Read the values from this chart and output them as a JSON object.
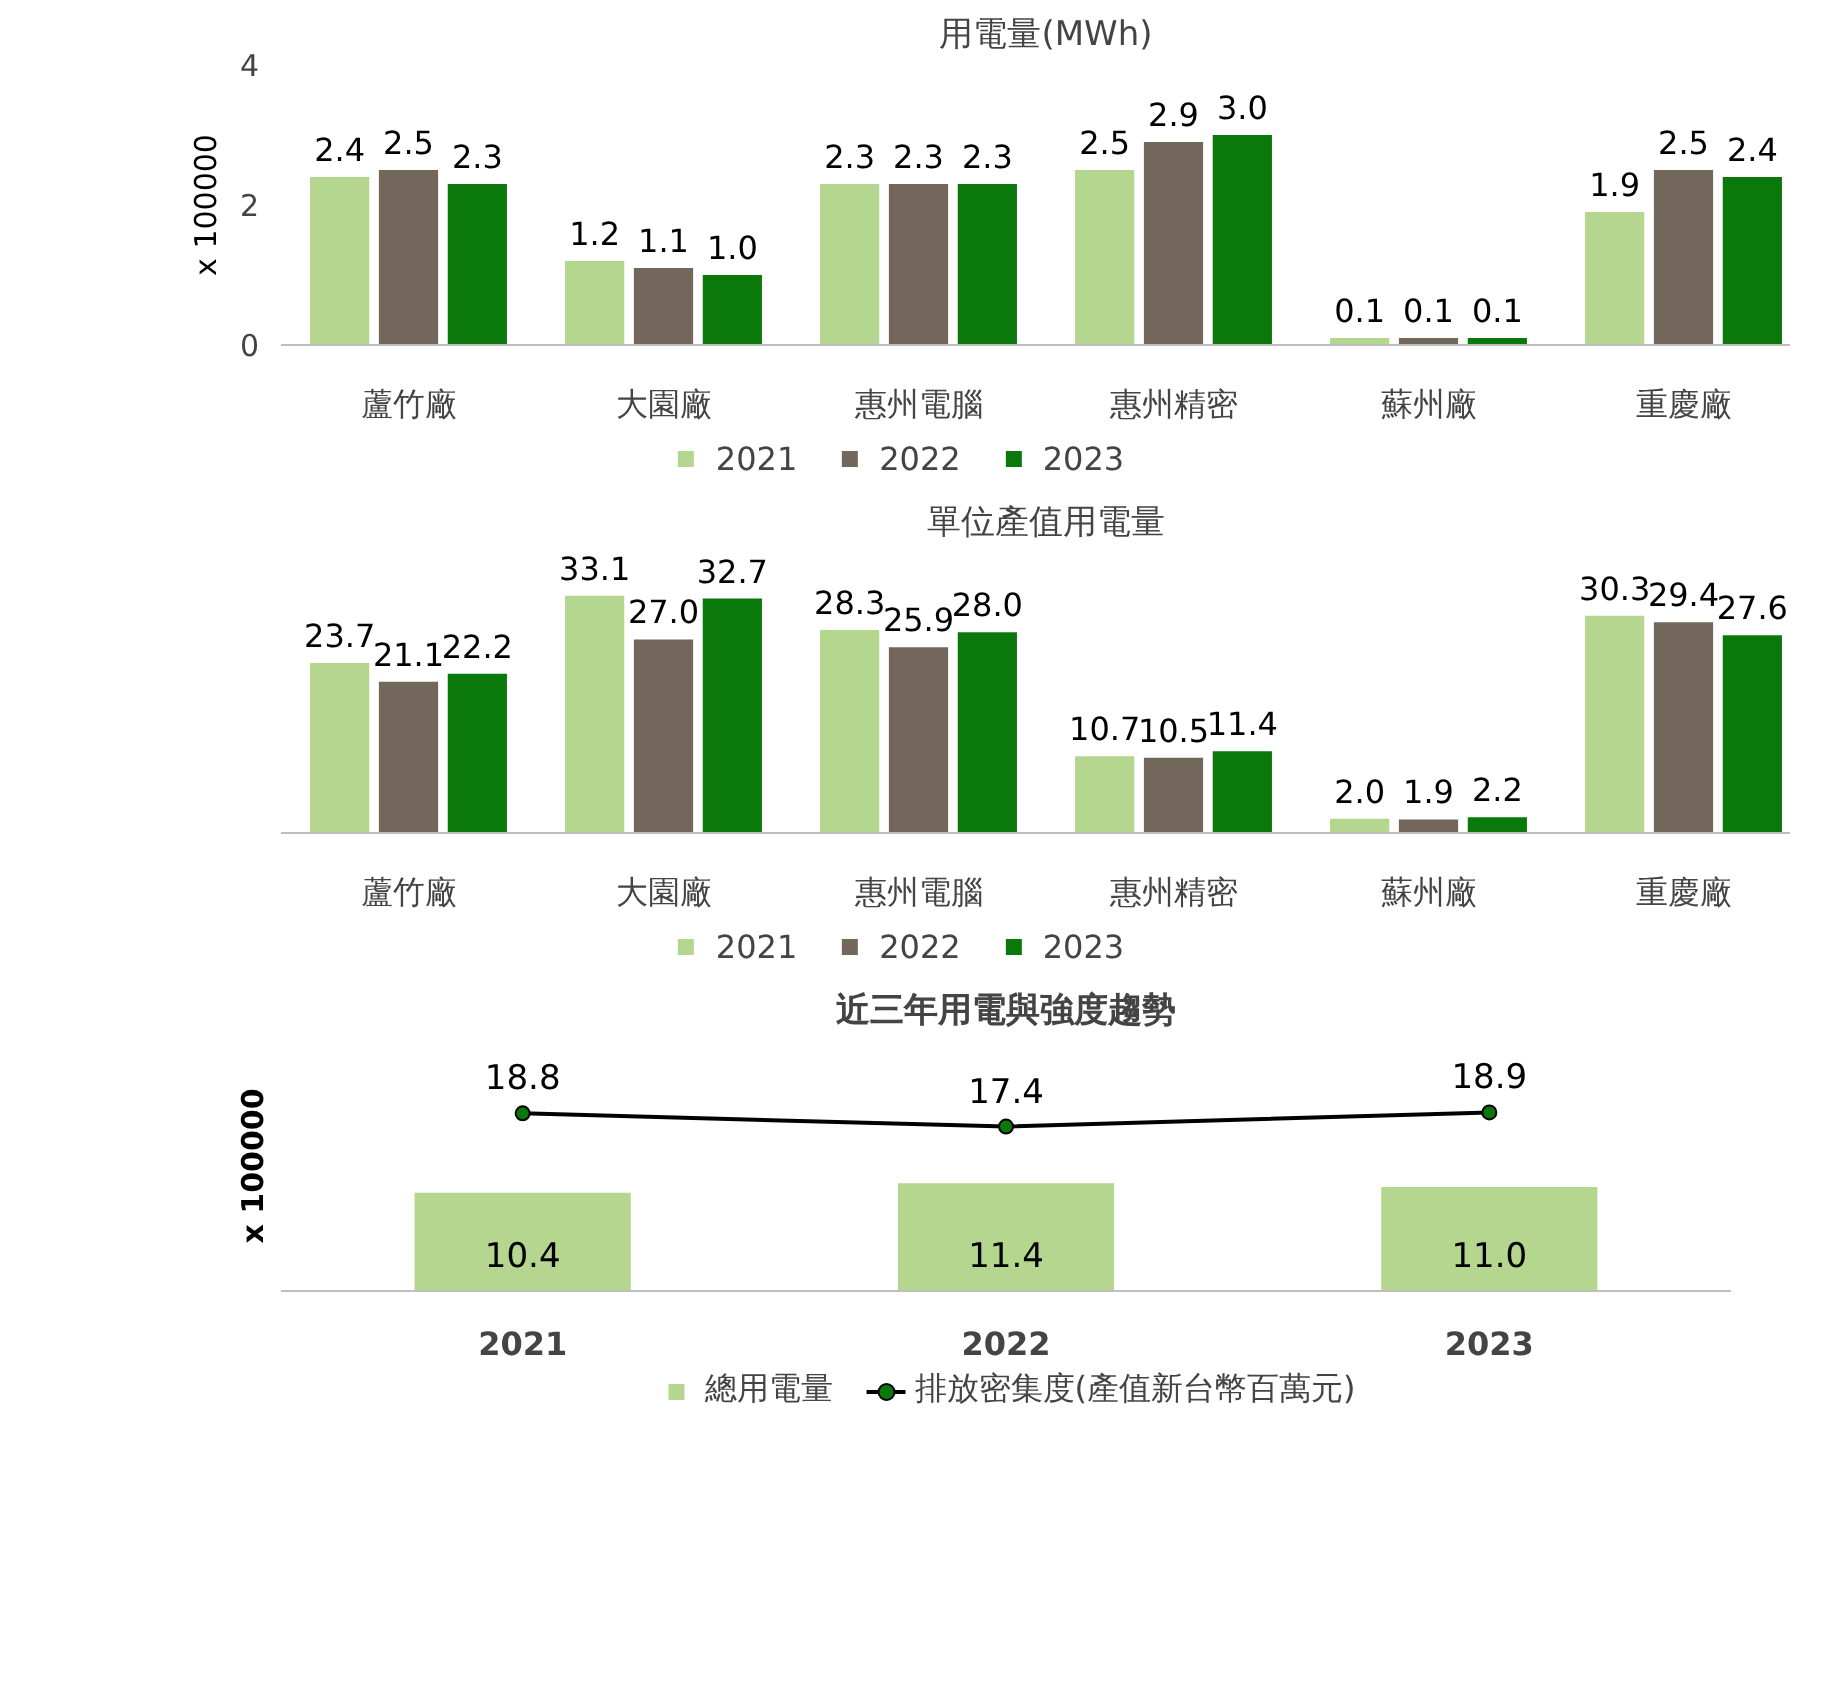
{
  "chart_data": [
    {
      "type": "bar",
      "title": "用電量(MWh)",
      "ylabel": "x 100000",
      "categories": [
        "蘆竹廠",
        "大園廠",
        "惠州電腦",
        "惠州精密",
        "蘇州廠",
        "重慶廠"
      ],
      "series": [
        {
          "name": "2021",
          "color": "#b5d68f",
          "values": [
            2.4,
            1.2,
            2.3,
            2.5,
            0.1,
            1.9
          ],
          "value_labels": [
            "2.4",
            "1.2",
            "2.3",
            "2.5",
            "0.1",
            "1.9"
          ]
        },
        {
          "name": "2022",
          "color": "#72675a",
          "values": [
            2.5,
            1.1,
            2.3,
            2.9,
            0.1,
            2.5
          ],
          "value_labels": [
            "2.5",
            "1.1",
            "2.3",
            "2.9",
            "0.1",
            "2.5"
          ]
        },
        {
          "name": "2023",
          "color": "#0b780b",
          "values": [
            2.3,
            1.0,
            2.3,
            3.0,
            0.1,
            2.4
          ],
          "value_labels": [
            "2.3",
            "1.0",
            "2.3",
            "3.0",
            "0.1",
            "2.4"
          ]
        }
      ],
      "ylim": [
        0,
        4
      ],
      "yticks": [
        0,
        2,
        4
      ],
      "legend": "bottom"
    },
    {
      "type": "bar",
      "title": "單位產值用電量",
      "categories": [
        "蘆竹廠",
        "大園廠",
        "惠州電腦",
        "惠州精密",
        "蘇州廠",
        "重慶廠"
      ],
      "series": [
        {
          "name": "2021",
          "color": "#b5d68f",
          "values": [
            23.7,
            33.1,
            28.3,
            10.7,
            2.0,
            30.3
          ],
          "value_labels": [
            "23.7",
            "33.1",
            "28.3",
            "10.7",
            "2.0",
            "30.3"
          ]
        },
        {
          "name": "2022",
          "color": "#72675a",
          "values": [
            21.1,
            27.0,
            25.9,
            10.5,
            1.9,
            29.4
          ],
          "value_labels": [
            "21.1",
            "27.0",
            "25.9",
            "10.5",
            "1.9",
            "29.4"
          ]
        },
        {
          "name": "2023",
          "color": "#0b780b",
          "values": [
            22.2,
            32.7,
            28.0,
            11.4,
            2.2,
            27.6
          ],
          "value_labels": [
            "22.2",
            "32.7",
            "28.0",
            "11.4",
            "2.2",
            "27.6"
          ]
        }
      ],
      "tick_labels": "x",
      "legend": "bottom"
    },
    {
      "type": "bar",
      "title": "近三年用電與強度趨勢",
      "ylabel": "x 100000",
      "categories": [
        "2021",
        "2022",
        "2023"
      ],
      "series": [
        {
          "name": "總用電量",
          "type": "bar",
          "color": "#b5d68f",
          "values": [
            10.4,
            11.4,
            11.0
          ],
          "value_labels": [
            "10.4",
            "11.4",
            "11.0"
          ]
        },
        {
          "name": "排放密集度(產值新台幣百萬元)",
          "type": "line",
          "color": "#000000",
          "values": [
            18.8,
            17.4,
            18.9
          ],
          "value_labels": [
            "18.8",
            "17.4",
            "18.9"
          ]
        }
      ],
      "tick_labels": "x",
      "marker": "circle",
      "legend": "bottom"
    }
  ]
}
